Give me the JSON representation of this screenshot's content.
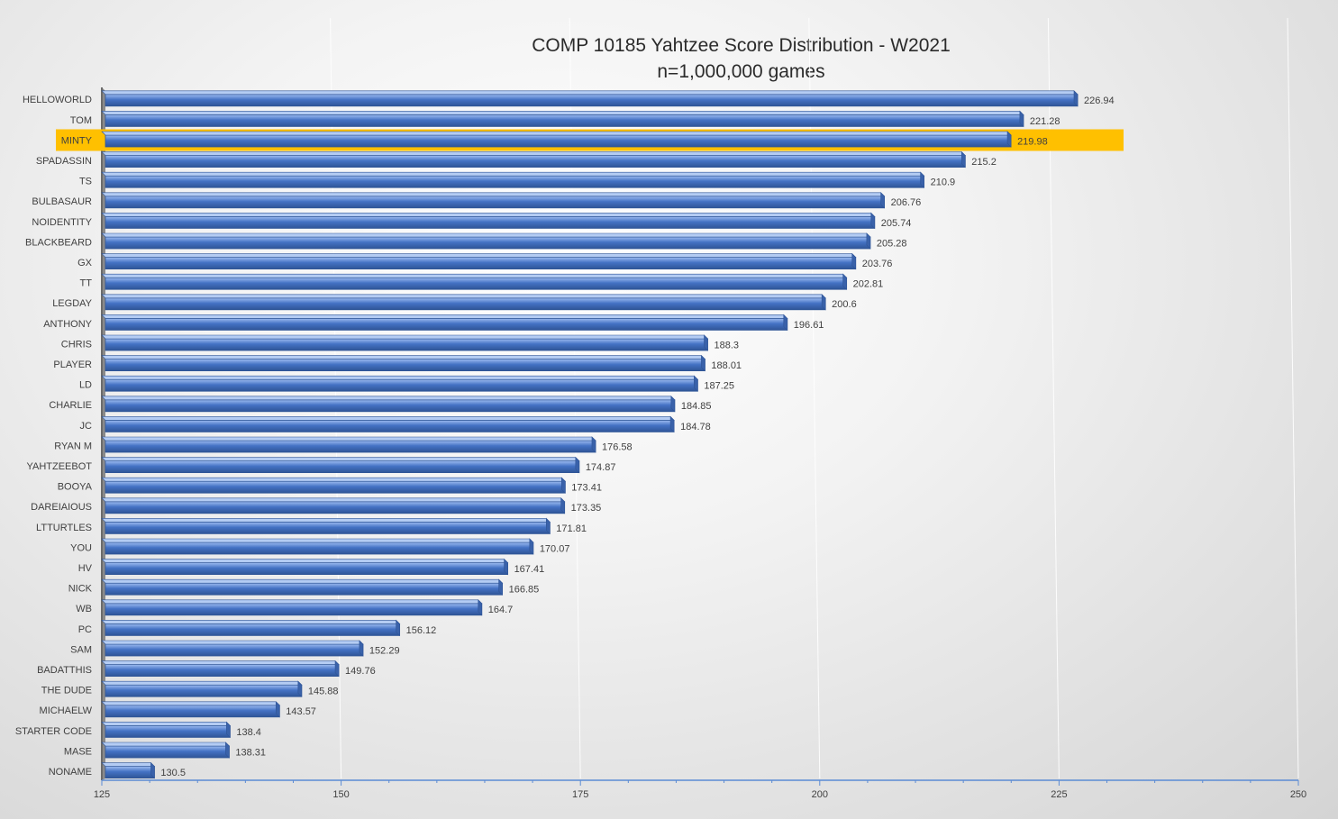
{
  "chart_data": {
    "type": "bar",
    "orientation": "horizontal",
    "title": "COMP 10185 Yahtzee Score Distribution - W2021",
    "subtitle": "n=1,000,000 games",
    "xlim": [
      125,
      250
    ],
    "x_ticks": [
      125,
      150,
      175,
      200,
      225,
      250
    ],
    "grid": true,
    "bar_color": "#4472C4",
    "highlight_color": "#FFC000",
    "highlight_category": "MINTY",
    "categories": [
      "HELLOWORLD",
      "TOM",
      "MINTY",
      "SPADASSIN",
      "TS",
      "BULBASAUR",
      "NOIDENTITY",
      "BLACKBEARD",
      "GX",
      "TT",
      "LEGDAY",
      "ANTHONY",
      "CHRIS",
      "PLAYER",
      "LD",
      "CHARLIE",
      "JC",
      "RYAN M",
      "YAHTZEEBOT",
      "BOOYA",
      "DAREIAIOUS",
      "LTTURTLES",
      "YOU",
      "HV",
      "NICK",
      "WB",
      "PC",
      "SAM",
      "BADATTHIS",
      "THE DUDE",
      "MICHAELW",
      "STARTER CODE",
      "MASE",
      "NONAME"
    ],
    "values": [
      226.94,
      221.28,
      219.98,
      215.2,
      210.9,
      206.76,
      205.74,
      205.28,
      203.76,
      202.81,
      200.6,
      196.61,
      188.3,
      188.01,
      187.25,
      184.85,
      184.78,
      176.58,
      174.87,
      173.41,
      173.35,
      171.81,
      170.07,
      167.41,
      166.85,
      164.7,
      156.12,
      152.29,
      149.76,
      145.88,
      143.57,
      138.4,
      138.31,
      130.5
    ]
  }
}
